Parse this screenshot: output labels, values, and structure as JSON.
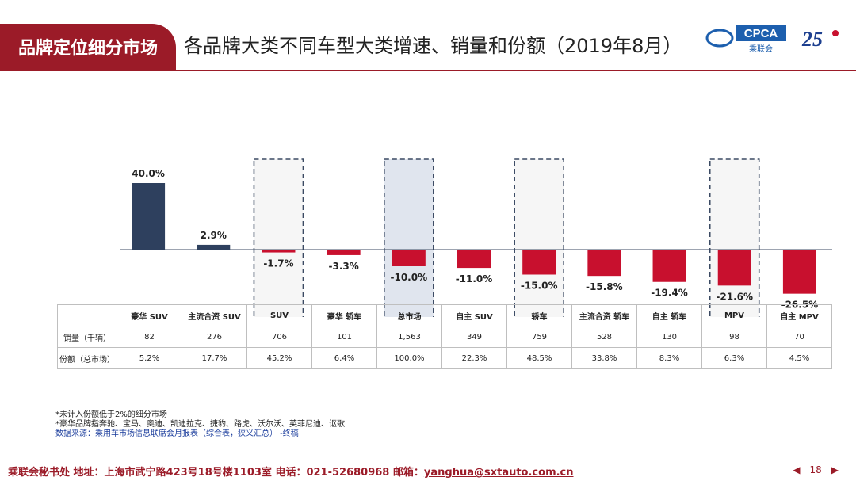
{
  "header": {
    "tag": "品牌定位细分市场",
    "title": "各品牌大类不同车型大类增速、销量和份额（2019年8月）",
    "logo1_text": "CPCA",
    "logo1_sub": "乘联会",
    "logo2_text": "25"
  },
  "chart_data": {
    "type": "bar",
    "title": "各品牌大类不同车型大类增速、销量和份额（2019年8月）",
    "categories": [
      "豪华 SUV",
      "主流合资 SUV",
      "SUV",
      "豪华 轿车",
      "总市场",
      "自主 SUV",
      "轿车",
      "主流合资 轿车",
      "自主 轿车",
      "MPV",
      "自主 MPV"
    ],
    "series": [
      {
        "name": "增速",
        "values": [
          40.0,
          2.9,
          -1.7,
          -3.3,
          -10.0,
          -11.0,
          -15.0,
          -15.8,
          -19.4,
          -21.6,
          -26.5
        ]
      }
    ],
    "value_labels": [
      "40.0%",
      "2.9%",
      "-1.7%",
      "-3.3%",
      "-10.0%",
      "-11.0%",
      "-15.0%",
      "-15.8%",
      "-19.4%",
      "-21.6%",
      "-26.5%"
    ],
    "ylim": [
      -30,
      45
    ],
    "highlighted": [
      "SUV",
      "总市场",
      "轿车",
      "MPV"
    ],
    "colors": {
      "positive": "#2e405e",
      "negative": "#c8102e"
    }
  },
  "table": {
    "rows": [
      {
        "label": "销量（千辆）",
        "values": [
          "82",
          "276",
          "706",
          "101",
          "1,563",
          "349",
          "759",
          "528",
          "130",
          "98",
          "70"
        ]
      },
      {
        "label": "份额（总市场）",
        "values": [
          "5.2%",
          "17.7%",
          "45.2%",
          "6.4%",
          "100.0%",
          "22.3%",
          "48.5%",
          "33.8%",
          "8.3%",
          "6.3%",
          "4.5%"
        ]
      }
    ]
  },
  "notes": {
    "line1": "*未计入份额低于2%的细分市场",
    "line2": "*豪华品牌指奔驰、宝马、奥迪、凯迪拉克、捷豹、路虎、沃尔沃、英菲尼迪、讴歌",
    "line3": "数据来源：乘用车市场信息联席会月报表（综合表，狭义汇总） -终稿"
  },
  "footer": {
    "text": "乘联会秘书处   地址：上海市武宁路423号18号楼1103室  电话：021-52680968  邮箱：",
    "email": "yanghua@sxtauto.com.cn",
    "prev": "◀",
    "page": "18",
    "next": "▶"
  }
}
